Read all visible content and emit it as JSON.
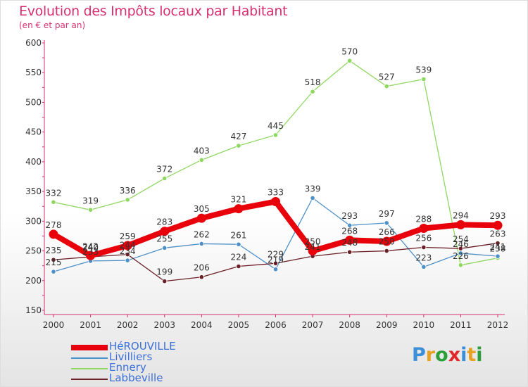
{
  "header": {
    "title": "Evolution des Impôts locaux par Habitant",
    "subtitle": "(en € et par an)"
  },
  "brand": {
    "name": "Proxiti",
    "letter_colors": [
      "#3a8fd8",
      "#e8a020",
      "#2a9f3a",
      "#e02828",
      "#3a8fd8",
      "#e8a020",
      "#2a9f3a"
    ]
  },
  "chart_data": {
    "type": "line",
    "title": "Evolution des Impôts locaux par Habitant",
    "subtitle": "(en € et par an)",
    "xlabel": "",
    "ylabel": "",
    "x": [
      "2000",
      "2001",
      "2002",
      "2003",
      "2004",
      "2005",
      "2006",
      "2007",
      "2008",
      "2009",
      "2010",
      "2011",
      "2012"
    ],
    "ylim": [
      150,
      600
    ],
    "yticks": [
      "150",
      "200",
      "250",
      "300",
      "350",
      "400",
      "450",
      "500",
      "550",
      "600"
    ],
    "grid": false,
    "legend": "bottom-left",
    "series": [
      {
        "name": "HéROUVILLE",
        "color": "#e8000b",
        "values": [
          278,
          242,
          259,
          283,
          305,
          321,
          333,
          250,
          268,
          266,
          288,
          294,
          293
        ],
        "labels": [
          "278",
          "242",
          "259",
          "283",
          "305",
          "321",
          "333",
          "250",
          "268",
          "266",
          "288",
          "294",
          "293"
        ]
      },
      {
        "name": "Livilliers",
        "color": "#4e90c8",
        "values": [
          215,
          233,
          234,
          255,
          262,
          261,
          219,
          339,
          293,
          297,
          223,
          246,
          241
        ],
        "labels": [
          "215",
          "233",
          "234",
          "255",
          "262",
          "261",
          "219",
          "339",
          "293",
          "297",
          "223",
          "246",
          "241"
        ]
      },
      {
        "name": "Ennery",
        "color": "#8fd860",
        "values": [
          332,
          319,
          336,
          372,
          403,
          427,
          445,
          518,
          570,
          527,
          539,
          226,
          238
        ],
        "labels": [
          "332",
          "319",
          "336",
          "372",
          "403",
          "427",
          "445",
          "518",
          "570",
          "527",
          "539",
          "226",
          "238"
        ]
      },
      {
        "name": "Labbeville",
        "color": "#6b1f26",
        "values": [
          235,
          240,
          244,
          199,
          206,
          224,
          229,
          241,
          248,
          250,
          256,
          254,
          263
        ],
        "labels": [
          "235",
          "240",
          "244",
          "199",
          "206",
          "224",
          "229",
          "241",
          "248",
          "250",
          "256",
          "254",
          "263"
        ]
      }
    ]
  }
}
